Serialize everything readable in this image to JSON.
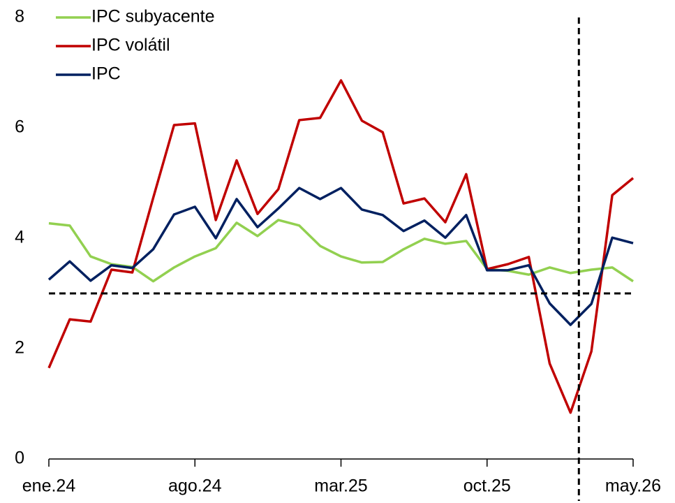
{
  "chart_data": {
    "type": "line",
    "categories": [
      "ene.24",
      null,
      null,
      null,
      null,
      null,
      null,
      "ago.24",
      null,
      null,
      null,
      null,
      null,
      null,
      "mar.25",
      null,
      null,
      null,
      null,
      null,
      null,
      "oct.25",
      null,
      null,
      null,
      null,
      null,
      null,
      "may.26"
    ],
    "series": [
      {
        "name": "IPC subyacente",
        "color": "#92d050",
        "values": [
          4.27,
          4.23,
          3.67,
          3.53,
          3.48,
          3.22,
          3.47,
          3.67,
          3.82,
          4.28,
          4.04,
          4.33,
          4.23,
          3.86,
          3.67,
          3.56,
          3.57,
          3.8,
          3.99,
          3.9,
          3.95,
          3.44,
          3.41,
          3.34,
          3.47,
          3.37,
          3.43,
          3.47,
          3.22
        ]
      },
      {
        "name": "IPC volátil",
        "color": "#c00000",
        "values": [
          1.65,
          2.53,
          2.49,
          3.43,
          3.38,
          4.73,
          6.05,
          6.08,
          4.33,
          5.41,
          4.44,
          4.89,
          6.14,
          6.18,
          6.86,
          6.13,
          5.92,
          4.63,
          4.72,
          4.29,
          5.16,
          3.44,
          3.53,
          3.66,
          1.73,
          0.84,
          1.95,
          4.78,
          5.09
        ]
      },
      {
        "name": "IPC",
        "color": "#002060",
        "values": [
          3.25,
          3.58,
          3.23,
          3.51,
          3.46,
          3.8,
          4.43,
          4.57,
          4.0,
          4.71,
          4.2,
          4.54,
          4.91,
          4.71,
          4.91,
          4.52,
          4.42,
          4.13,
          4.32,
          4.01,
          4.42,
          3.42,
          3.42,
          3.51,
          2.82,
          2.43,
          2.81,
          4.01,
          3.91
        ]
      }
    ],
    "ylim": [
      0,
      8
    ],
    "yticks": [
      0,
      2,
      4,
      6,
      8
    ],
    "hline": 3,
    "vline_x": 25.4,
    "grid": false,
    "legend": "top-left"
  }
}
